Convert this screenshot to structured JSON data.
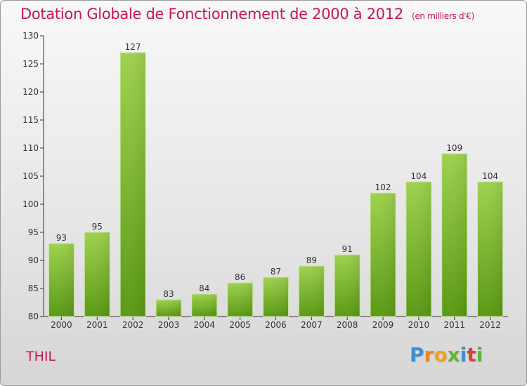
{
  "header": {
    "title": "Dotation Globale de Fonctionnement de 2000 à 2012",
    "subtitle": "(en milliers d'€)"
  },
  "footer": {
    "town": "THIL",
    "brand_letters": [
      "P",
      "r",
      "o",
      "x",
      "i",
      "t",
      "i"
    ],
    "brand_colors": [
      "#3a8fd6",
      "#e8851a",
      "#f0a21b",
      "#5fb53a",
      "#3a8fd6",
      "#d9403a",
      "#5fb53a"
    ]
  },
  "colors": {
    "accent": "#c8184f",
    "bar_light": "#9fd24e",
    "bar_dark": "#5a9a14",
    "axis": "#333333"
  },
  "chart_data": {
    "type": "bar",
    "title": "Dotation Globale de Fonctionnement de 2000 à 2012",
    "subtitle": "(en milliers d'€)",
    "xlabel": "",
    "ylabel": "",
    "categories": [
      "2000",
      "2001",
      "2002",
      "2003",
      "2004",
      "2005",
      "2006",
      "2007",
      "2008",
      "2009",
      "2010",
      "2011",
      "2012"
    ],
    "values": [
      93,
      95,
      127,
      83,
      84,
      86,
      87,
      89,
      91,
      102,
      104,
      109,
      104
    ],
    "ylim": [
      80,
      130
    ],
    "yticks": [
      80,
      85,
      90,
      95,
      100,
      105,
      110,
      115,
      120,
      125,
      130
    ],
    "grid": false,
    "legend": "none"
  }
}
